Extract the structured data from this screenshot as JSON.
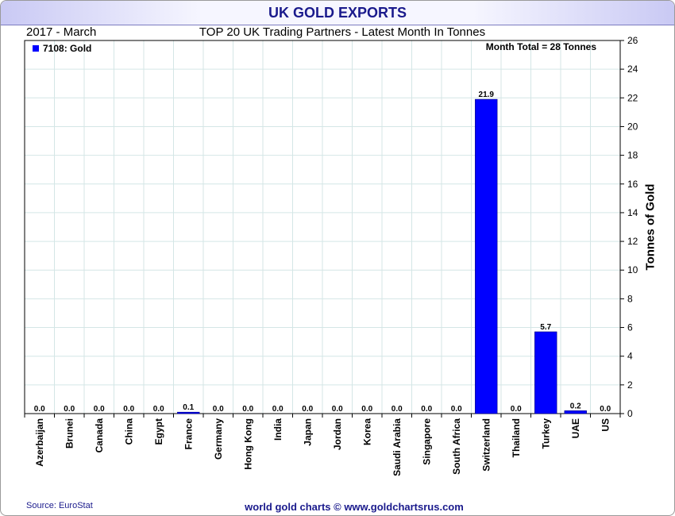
{
  "chart_data": {
    "type": "bar",
    "title": "UK GOLD EXPORTS",
    "period": "2017 - March",
    "subtitle": "TOP 20 UK Trading Partners - Latest Month In Tonnes",
    "legend": "7108: Gold",
    "legend_position": "top-left",
    "month_total": "Month Total = 28 Tonnes",
    "ylabel": "Tonnes of Gold",
    "xlabel": "",
    "ylim": [
      0,
      26
    ],
    "yticks": [
      0,
      2,
      4,
      6,
      8,
      10,
      12,
      14,
      16,
      18,
      20,
      22,
      24,
      26
    ],
    "grid": true,
    "bar_color": "#0000ff",
    "categories": [
      "Azerbaijan",
      "Brunei",
      "Canada",
      "China",
      "Egypt",
      "France",
      "Germany",
      "Hong Kong",
      "India",
      "Japan",
      "Jordan",
      "Korea",
      "Saudi Arabia",
      "Singapore",
      "South Africa",
      "Switzerland",
      "Thailand",
      "Turkey",
      "UAE",
      "US"
    ],
    "values": [
      0.0,
      0.0,
      0.0,
      0.0,
      0.0,
      0.1,
      0.0,
      0.0,
      0.0,
      0.0,
      0.0,
      0.0,
      0.0,
      0.0,
      0.0,
      21.9,
      0.0,
      5.7,
      0.2,
      0.0
    ],
    "value_labels": [
      "0.0",
      "0.0",
      "0.0",
      "0.0",
      "0.0",
      "0.1",
      "0.0",
      "0.0",
      "0.0",
      "0.0",
      "0.0",
      "0.0",
      "0.0",
      "0.0",
      "0.0",
      "21.9",
      "0.0",
      "5.7",
      "0.2",
      "0.0"
    ],
    "source": "Source: EuroStat",
    "footer": "world gold charts © www.goldchartsrus.com"
  }
}
